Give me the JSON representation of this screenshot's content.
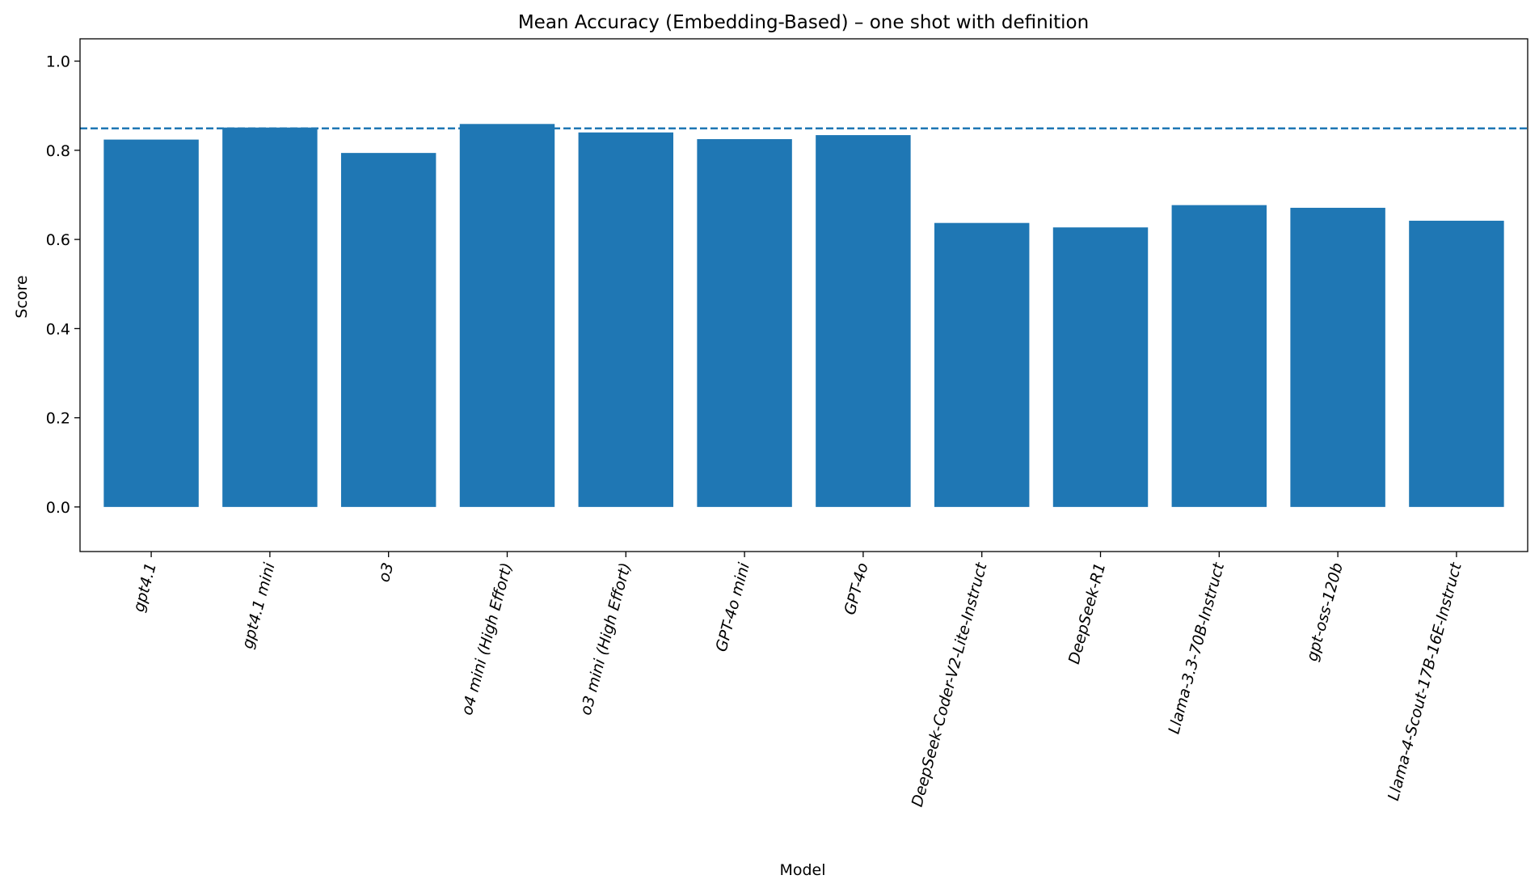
{
  "chart_data": {
    "type": "bar",
    "title": "Mean Accuracy (Embedding-Based) – one shot with definition",
    "xlabel": "Model",
    "ylabel": "Score",
    "ylim": [
      -0.1,
      1.05
    ],
    "yticks": [
      0.0,
      0.2,
      0.4,
      0.6,
      0.8,
      1.0
    ],
    "ytick_labels": [
      "0.0",
      "0.2",
      "0.4",
      "0.6",
      "0.8",
      "1.0"
    ],
    "grid": false,
    "categories": [
      "gpt4.1",
      "gpt4.1 mini",
      "o3",
      "o4 mini (High Effort)",
      "o3 mini (High Effort)",
      "GPT-4o mini",
      "GPT-4o",
      "DeepSeek-Coder-V2-Lite-Instruct",
      "DeepSeek-R1",
      "Llama-3.3-70B-Instruct",
      "gpt-oss-120b",
      "Llama-4-Scout-17B-16E-Instruct"
    ],
    "values": [
      0.824,
      0.851,
      0.794,
      0.859,
      0.84,
      0.825,
      0.834,
      0.637,
      0.627,
      0.677,
      0.671,
      0.642
    ],
    "reference_line": 0.849,
    "colors": {
      "bar": "#1f77b4",
      "reference_line": "#1f77b4"
    }
  }
}
